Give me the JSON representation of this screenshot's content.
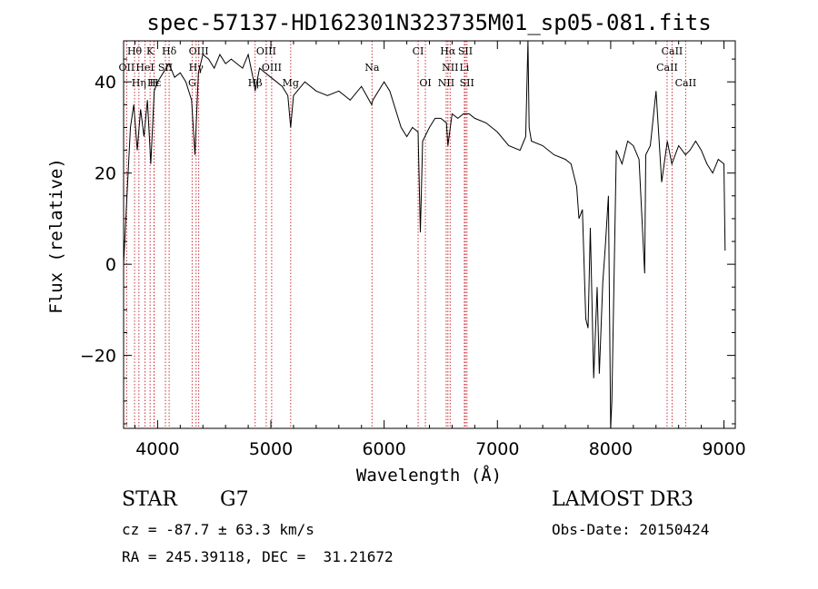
{
  "chart_data": {
    "type": "line",
    "title": "spec-57137-HD162301N323735M01_sp05-081.fits",
    "xlabel": "Wavelength (Å)",
    "ylabel": "Flux (relative)",
    "xlim": [
      3700,
      9100
    ],
    "ylim": [
      -36,
      49
    ],
    "xticks": [
      4000,
      5000,
      6000,
      7000,
      8000,
      9000
    ],
    "yticks": [
      -20,
      0,
      20,
      40
    ],
    "series": [
      {
        "name": "flux",
        "x": [
          3700,
          3730,
          3760,
          3790,
          3820,
          3850,
          3880,
          3910,
          3940,
          3970,
          4000,
          4050,
          4100,
          4150,
          4200,
          4250,
          4300,
          4330,
          4360,
          4400,
          4450,
          4500,
          4550,
          4600,
          4650,
          4700,
          4750,
          4800,
          4850,
          4861,
          4900,
          4950,
          5000,
          5050,
          5100,
          5150,
          5175,
          5200,
          5300,
          5400,
          5500,
          5600,
          5700,
          5800,
          5890,
          5900,
          6000,
          6050,
          6100,
          6150,
          6200,
          6250,
          6300,
          6320,
          6340,
          6400,
          6450,
          6500,
          6550,
          6563,
          6600,
          6650,
          6700,
          6750,
          6800,
          6900,
          7000,
          7100,
          7200,
          7250,
          7270,
          7280,
          7300,
          7400,
          7500,
          7600,
          7650,
          7700,
          7720,
          7750,
          7780,
          7800,
          7820,
          7850,
          7880,
          7900,
          7930,
          7950,
          7980,
          8000,
          8010,
          8050,
          8100,
          8150,
          8200,
          8250,
          8300,
          8310,
          8350,
          8400,
          8450,
          8500,
          8540,
          8600,
          8660,
          8700,
          8750,
          8800,
          8850,
          8900,
          8950,
          9000,
          9010
        ],
        "y": [
          0,
          15,
          30,
          35,
          25,
          34,
          28,
          36,
          22,
          38,
          40,
          42,
          44,
          41,
          42,
          40,
          36,
          24,
          42,
          46,
          45,
          43,
          46,
          44,
          45,
          44,
          43,
          46,
          40,
          38,
          43,
          42,
          41,
          40,
          39,
          37,
          30,
          37,
          40,
          38,
          37,
          38,
          36,
          39,
          35,
          36,
          40,
          38,
          34,
          30,
          28,
          30,
          29,
          7,
          27,
          30,
          32,
          32,
          31,
          26,
          33,
          32,
          33,
          33,
          32,
          31,
          29,
          26,
          25,
          28,
          49,
          30,
          27,
          26,
          24,
          23,
          22,
          17,
          10,
          12,
          -12,
          -14,
          8,
          -25,
          -5,
          -24,
          -4,
          3,
          15,
          -36,
          -30,
          25,
          22,
          27,
          26,
          23,
          -2,
          24,
          26,
          38,
          18,
          27,
          22,
          26,
          24,
          25,
          27,
          25,
          22,
          20,
          23,
          22,
          3
        ],
        "color": "#000000"
      }
    ],
    "line_markers": [
      {
        "label": "Hθ",
        "x": 3797,
        "row": 0
      },
      {
        "label": "K",
        "x": 3934,
        "row": 0
      },
      {
        "label": "Hδ",
        "x": 4102,
        "row": 0
      },
      {
        "label": "OIII",
        "x": 4363,
        "row": 0
      },
      {
        "label": "OIII",
        "x": 4959,
        "row": 0
      },
      {
        "label": "CI",
        "x": 6300,
        "row": 0
      },
      {
        "label": "Hα",
        "x": 6563,
        "row": 0
      },
      {
        "label": "SII",
        "x": 6717,
        "row": 0
      },
      {
        "label": "CaII",
        "x": 8542,
        "row": 0
      },
      {
        "label": "OII",
        "x": 3727,
        "row": 1
      },
      {
        "label": "HeI",
        "x": 3889,
        "row": 1
      },
      {
        "label": "SII",
        "x": 4069,
        "row": 1
      },
      {
        "label": "Hγ",
        "x": 4340,
        "row": 1
      },
      {
        "label": "OIII",
        "x": 5007,
        "row": 1
      },
      {
        "label": "Na",
        "x": 5893,
        "row": 1
      },
      {
        "label": "NII",
        "x": 6583,
        "row": 1
      },
      {
        "label": "Li",
        "x": 6708,
        "row": 1
      },
      {
        "label": "CaII",
        "x": 8498,
        "row": 1
      },
      {
        "label": "Hε",
        "x": 3970,
        "row": 2
      },
      {
        "label": "Hη",
        "x": 3835,
        "row": 2
      },
      {
        "label": "H",
        "x": 3968,
        "row": 2
      },
      {
        "label": "G",
        "x": 4305,
        "row": 2
      },
      {
        "label": "Hβ",
        "x": 4861,
        "row": 2
      },
      {
        "label": "Mg",
        "x": 5175,
        "row": 2
      },
      {
        "label": "OI",
        "x": 6364,
        "row": 2
      },
      {
        "label": "NII",
        "x": 6548,
        "row": 2
      },
      {
        "label": "SII",
        "x": 6731,
        "row": 2
      },
      {
        "label": "CaII",
        "x": 8662,
        "row": 2
      }
    ],
    "marker_color": "#c8323c"
  },
  "info": {
    "object_type": "STAR",
    "subclass": "G7",
    "survey": "LAMOST DR3",
    "cz": "cz = -87.7 ± 63.3 km/s",
    "obs_date": "Obs-Date: 20150424",
    "coords": "RA = 245.39118, DEC =  31.21672"
  }
}
